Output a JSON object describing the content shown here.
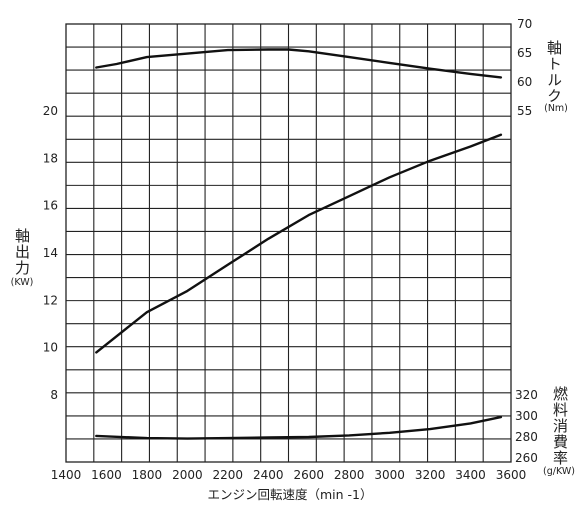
{
  "chart_data": {
    "type": "line",
    "xlabel": "エンジン回転速度（min -1）",
    "x_ticks": [
      "1400",
      "1600",
      "1800",
      "2000",
      "2200",
      "2400",
      "2600",
      "2800",
      "3000",
      "3200",
      "3400",
      "3600"
    ],
    "xlim": [
      1400,
      3600
    ],
    "axes": {
      "power": {
        "label": "軸出力",
        "unit": "(KW)",
        "ticks": [
          "8",
          "10",
          "12",
          "14",
          "16",
          "18",
          "20"
        ],
        "range": [
          6,
          22.5
        ]
      },
      "torque": {
        "label": "軸トルク",
        "unit": "(Nm)",
        "ticks": [
          "55",
          "60",
          "65",
          "70"
        ],
        "range": [
          47,
          71
        ]
      },
      "consumption": {
        "label": "燃料消費率",
        "unit": "(g/KW)",
        "ticks": [
          "260",
          "280",
          "300",
          "320"
        ],
        "range": [
          260,
          330
        ]
      }
    },
    "series": [
      {
        "axis": "torque",
        "x": [
          1550,
          1650,
          1800,
          2000,
          2200,
          2400,
          2500,
          2600,
          2800,
          3000,
          3200,
          3400,
          3550
        ],
        "y": [
          62.5,
          63.1,
          64.3,
          64.9,
          65.5,
          65.6,
          65.6,
          65.3,
          64.3,
          63.3,
          62.3,
          61.4,
          60.8
        ]
      },
      {
        "axis": "power",
        "x": [
          1550,
          1800,
          2000,
          2200,
          2400,
          2600,
          2800,
          3000,
          3200,
          3400,
          3550
        ],
        "y": [
          9.8,
          11.5,
          12.4,
          13.5,
          14.6,
          15.6,
          16.4,
          17.2,
          17.9,
          18.5,
          19.0
        ]
      },
      {
        "axis": "consumption",
        "x": [
          1550,
          1800,
          2000,
          2200,
          2400,
          2600,
          2800,
          3000,
          3200,
          3400,
          3550
        ],
        "y": [
          281,
          279,
          278.5,
          279,
          279.5,
          280,
          281.5,
          284,
          287.5,
          293,
          299
        ]
      }
    ]
  }
}
